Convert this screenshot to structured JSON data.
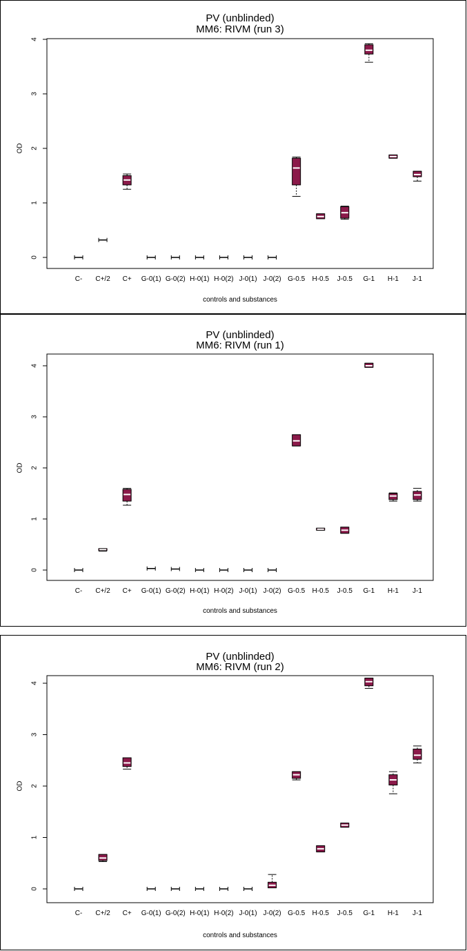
{
  "colors": {
    "box_fill": "#8b1a4a",
    "median": "#ffffff",
    "axis": "#000000"
  },
  "chart_data": [
    {
      "type": "boxplot",
      "title": "PV (unblinded)",
      "subtitle": "MM6: RIVM (run 3)",
      "xlabel": "controls and substances",
      "ylabel": "OD",
      "ylim": [
        0,
        4
      ],
      "yticks": [
        "0",
        "1",
        "2",
        "3",
        "4"
      ],
      "categories": [
        "C-",
        "C+/2",
        "C+",
        "G-0(1)",
        "G-0(2)",
        "H-0(1)",
        "H-0(2)",
        "J-0(1)",
        "J-0(2)",
        "G-0.5",
        "H-0.5",
        "J-0.5",
        "G-1",
        "H-1",
        "J-1"
      ],
      "boxes": [
        {
          "min": 0.0,
          "q1": 0.0,
          "median": 0.0,
          "q3": 0.0,
          "max": 0.0
        },
        {
          "min": 0.32,
          "q1": 0.32,
          "median": 0.32,
          "q3": 0.32,
          "max": 0.32
        },
        {
          "min": 1.25,
          "q1": 1.33,
          "median": 1.42,
          "q3": 1.5,
          "max": 1.53
        },
        {
          "min": 0.0,
          "q1": 0.0,
          "median": 0.0,
          "q3": 0.0,
          "max": 0.0
        },
        {
          "min": 0.0,
          "q1": 0.0,
          "median": 0.0,
          "q3": 0.0,
          "max": 0.0
        },
        {
          "min": 0.0,
          "q1": 0.0,
          "median": 0.0,
          "q3": 0.0,
          "max": 0.0
        },
        {
          "min": 0.0,
          "q1": 0.0,
          "median": 0.0,
          "q3": 0.0,
          "max": 0.0
        },
        {
          "min": 0.0,
          "q1": 0.0,
          "median": 0.0,
          "q3": 0.0,
          "max": 0.0
        },
        {
          "min": 0.0,
          "q1": 0.0,
          "median": 0.0,
          "q3": 0.0,
          "max": 0.0
        },
        {
          "min": 1.12,
          "q1": 1.33,
          "median": 1.64,
          "q3": 1.82,
          "max": 1.84
        },
        {
          "min": 0.71,
          "q1": 0.71,
          "median": 0.75,
          "q3": 0.8,
          "max": 0.8
        },
        {
          "min": 0.7,
          "q1": 0.72,
          "median": 0.82,
          "q3": 0.93,
          "max": 0.94
        },
        {
          "min": 3.58,
          "q1": 3.73,
          "median": 3.8,
          "q3": 3.9,
          "max": 3.92
        },
        {
          "min": 1.82,
          "q1": 1.82,
          "median": 1.85,
          "q3": 1.88,
          "max": 1.88
        },
        {
          "min": 1.4,
          "q1": 1.48,
          "median": 1.52,
          "q3": 1.58,
          "max": 1.58
        }
      ]
    },
    {
      "type": "boxplot",
      "title": "PV (unblinded)",
      "subtitle": "MM6: RIVM (run 1)",
      "xlabel": "controls and substances",
      "ylabel": "OD",
      "ylim": [
        0,
        4
      ],
      "yticks": [
        "0",
        "1",
        "2",
        "3",
        "4"
      ],
      "categories": [
        "C-",
        "C+/2",
        "C+",
        "G-0(1)",
        "G-0(2)",
        "H-0(1)",
        "H-0(2)",
        "J-0(1)",
        "J-0(2)",
        "G-0.5",
        "H-0.5",
        "J-0.5",
        "G-1",
        "H-1",
        "J-1"
      ],
      "boxes": [
        {
          "min": 0.0,
          "q1": 0.0,
          "median": 0.0,
          "q3": 0.0,
          "max": 0.0
        },
        {
          "min": 0.37,
          "q1": 0.38,
          "median": 0.4,
          "q3": 0.42,
          "max": 0.42
        },
        {
          "min": 1.27,
          "q1": 1.35,
          "median": 1.48,
          "q3": 1.58,
          "max": 1.6
        },
        {
          "min": 0.03,
          "q1": 0.03,
          "median": 0.03,
          "q3": 0.03,
          "max": 0.03
        },
        {
          "min": 0.02,
          "q1": 0.02,
          "median": 0.02,
          "q3": 0.02,
          "max": 0.02
        },
        {
          "min": 0.0,
          "q1": 0.0,
          "median": 0.0,
          "q3": 0.0,
          "max": 0.0
        },
        {
          "min": 0.0,
          "q1": 0.0,
          "median": 0.0,
          "q3": 0.0,
          "max": 0.0
        },
        {
          "min": 0.0,
          "q1": 0.0,
          "median": 0.0,
          "q3": 0.0,
          "max": 0.0
        },
        {
          "min": 0.0,
          "q1": 0.0,
          "median": 0.0,
          "q3": 0.0,
          "max": 0.0
        },
        {
          "min": 2.43,
          "q1": 2.43,
          "median": 2.53,
          "q3": 2.65,
          "max": 2.65
        },
        {
          "min": 0.78,
          "q1": 0.78,
          "median": 0.8,
          "q3": 0.82,
          "max": 0.82
        },
        {
          "min": 0.72,
          "q1": 0.72,
          "median": 0.78,
          "q3": 0.84,
          "max": 0.84
        },
        {
          "min": 3.97,
          "q1": 3.97,
          "median": 4.0,
          "q3": 4.05,
          "max": 4.05
        },
        {
          "min": 1.35,
          "q1": 1.38,
          "median": 1.45,
          "q3": 1.5,
          "max": 1.51
        },
        {
          "min": 1.35,
          "q1": 1.38,
          "median": 1.47,
          "q3": 1.54,
          "max": 1.6
        }
      ]
    },
    {
      "type": "boxplot",
      "title": "PV (unblinded)",
      "subtitle": "MM6: RIVM (run 2)",
      "xlabel": "controls and substances",
      "ylabel": "OD",
      "ylim": [
        0,
        4
      ],
      "yticks": [
        "0",
        "1",
        "2",
        "3",
        "4"
      ],
      "categories": [
        "C-",
        "C+/2",
        "C+",
        "G-0(1)",
        "G-0(2)",
        "H-0(1)",
        "H-0(2)",
        "J-0(1)",
        "J-0(2)",
        "G-0.5",
        "H-0.5",
        "J-0.5",
        "G-1",
        "H-1",
        "J-1"
      ],
      "boxes": [
        {
          "min": 0.0,
          "q1": 0.0,
          "median": 0.0,
          "q3": 0.0,
          "max": 0.0
        },
        {
          "min": 0.53,
          "q1": 0.55,
          "median": 0.6,
          "q3": 0.67,
          "max": 0.67
        },
        {
          "min": 2.33,
          "q1": 2.38,
          "median": 2.45,
          "q3": 2.55,
          "max": 2.55
        },
        {
          "min": 0.0,
          "q1": 0.0,
          "median": 0.0,
          "q3": 0.0,
          "max": 0.0
        },
        {
          "min": 0.0,
          "q1": 0.0,
          "median": 0.0,
          "q3": 0.0,
          "max": 0.0
        },
        {
          "min": 0.0,
          "q1": 0.0,
          "median": 0.0,
          "q3": 0.0,
          "max": 0.0
        },
        {
          "min": 0.0,
          "q1": 0.0,
          "median": 0.0,
          "q3": 0.0,
          "max": 0.0
        },
        {
          "min": 0.0,
          "q1": 0.0,
          "median": 0.0,
          "q3": 0.0,
          "max": 0.0
        },
        {
          "min": 0.02,
          "q1": 0.02,
          "median": 0.07,
          "q3": 0.13,
          "max": 0.28
        },
        {
          "min": 2.12,
          "q1": 2.15,
          "median": 2.22,
          "q3": 2.28,
          "max": 2.28
        },
        {
          "min": 0.72,
          "q1": 0.72,
          "median": 0.78,
          "q3": 0.84,
          "max": 0.84
        },
        {
          "min": 1.2,
          "q1": 1.2,
          "median": 1.24,
          "q3": 1.28,
          "max": 1.28
        },
        {
          "min": 3.9,
          "q1": 3.95,
          "median": 4.03,
          "q3": 4.1,
          "max": 4.1
        },
        {
          "min": 1.85,
          "q1": 2.02,
          "median": 2.12,
          "q3": 2.22,
          "max": 2.28
        },
        {
          "min": 2.45,
          "q1": 2.52,
          "median": 2.6,
          "q3": 2.72,
          "max": 2.78
        }
      ]
    }
  ]
}
